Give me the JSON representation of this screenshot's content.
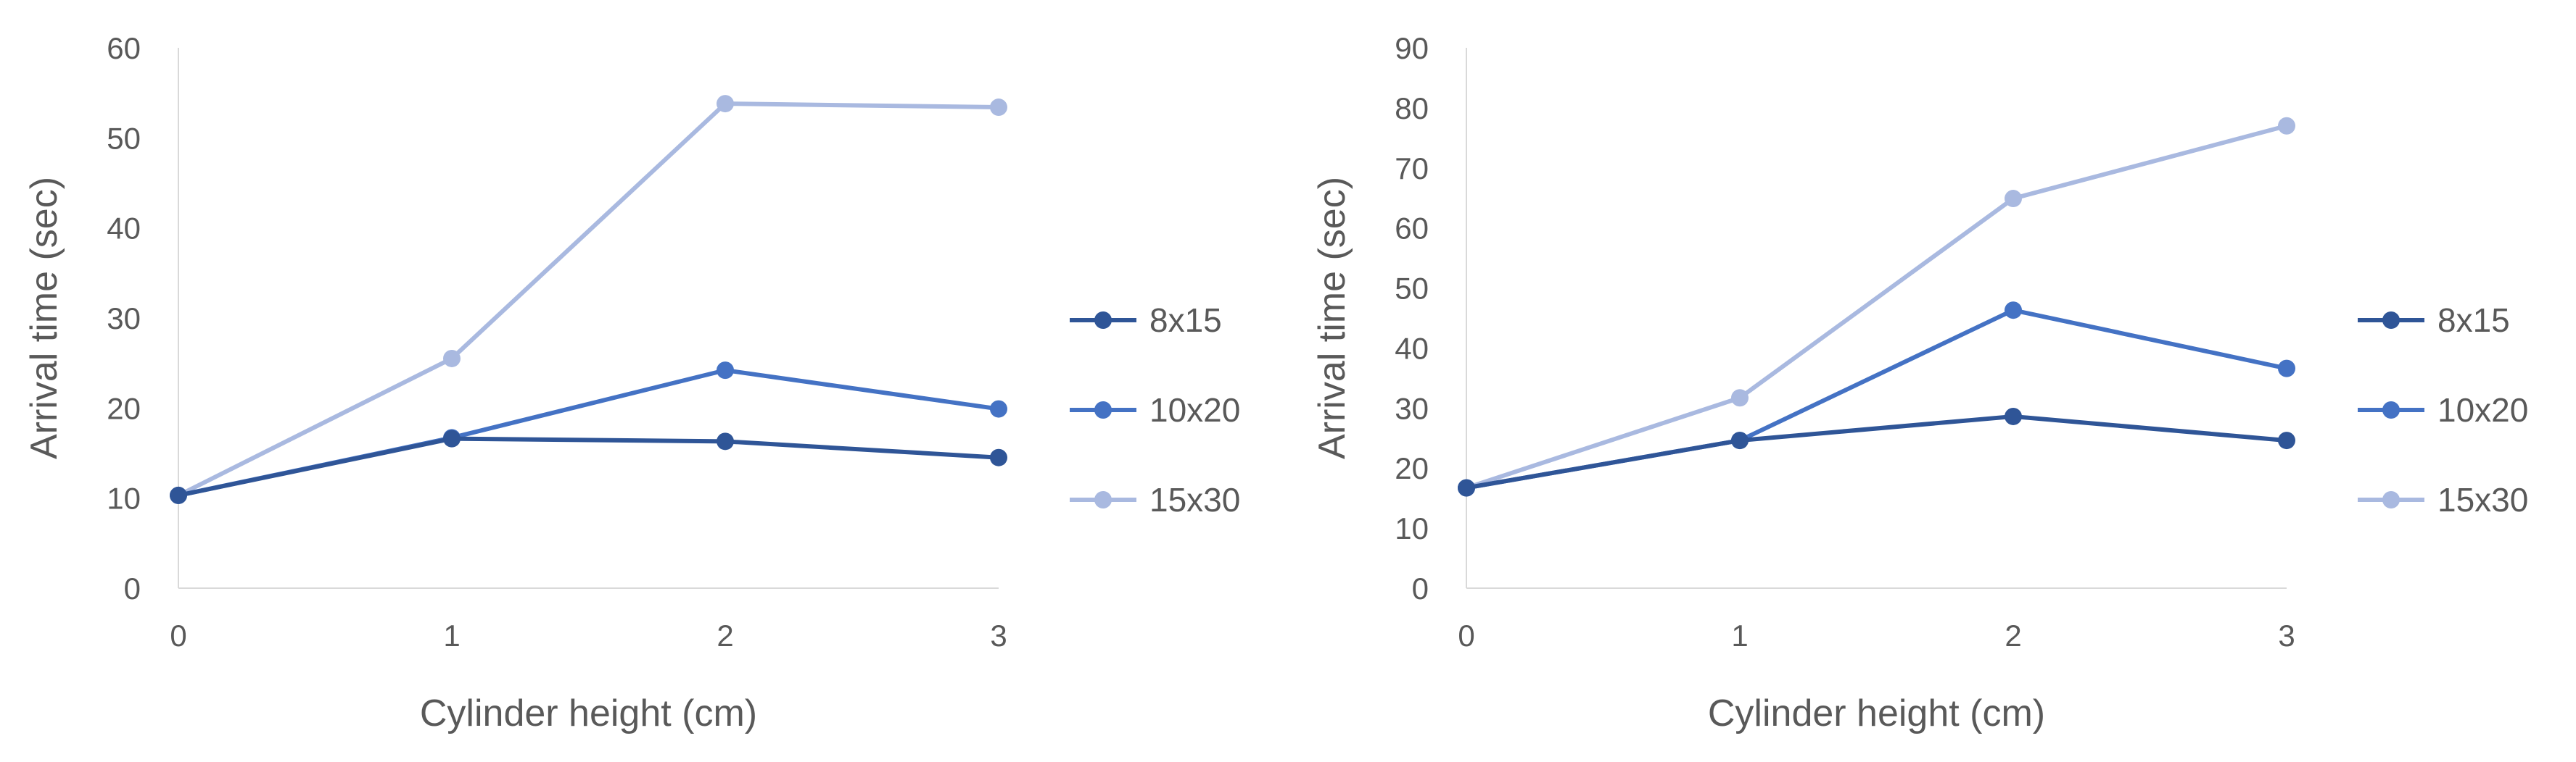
{
  "chart_data": [
    {
      "type": "line",
      "title": "",
      "xlabel": "Cylinder height (cm)",
      "ylabel": "Arrival time (sec)",
      "categories": [
        "0",
        "1",
        "2",
        "3"
      ],
      "ylim": [
        0,
        60
      ],
      "yticks": [
        0,
        10,
        20,
        30,
        40,
        50,
        60
      ],
      "grid": false,
      "legend_position": "right",
      "series": [
        {
          "name": "8x15",
          "color": "#2f5597",
          "values": [
            10.3,
            16.6,
            16.3,
            14.5
          ]
        },
        {
          "name": "10x20",
          "color": "#4472c4",
          "values": [
            10.3,
            16.7,
            24.2,
            19.9
          ]
        },
        {
          "name": "15x30",
          "color": "#a9b9e0",
          "values": [
            10.3,
            25.5,
            53.8,
            53.4
          ]
        }
      ]
    },
    {
      "type": "line",
      "title": "",
      "xlabel": "Cylinder height (cm)",
      "ylabel": "Arrival time (sec)",
      "categories": [
        "0",
        "1",
        "2",
        "3"
      ],
      "ylim": [
        0,
        90
      ],
      "yticks": [
        0,
        10,
        20,
        30,
        40,
        50,
        60,
        70,
        80,
        90
      ],
      "grid": false,
      "legend_position": "right",
      "series": [
        {
          "name": "8x15",
          "color": "#2f5597",
          "values": [
            16.7,
            24.6,
            28.6,
            24.6
          ]
        },
        {
          "name": "10x20",
          "color": "#4472c4",
          "values": [
            16.7,
            24.6,
            46.3,
            36.6
          ]
        },
        {
          "name": "15x30",
          "color": "#a9b9e0",
          "values": [
            16.7,
            31.7,
            64.9,
            77.0
          ]
        }
      ]
    }
  ]
}
